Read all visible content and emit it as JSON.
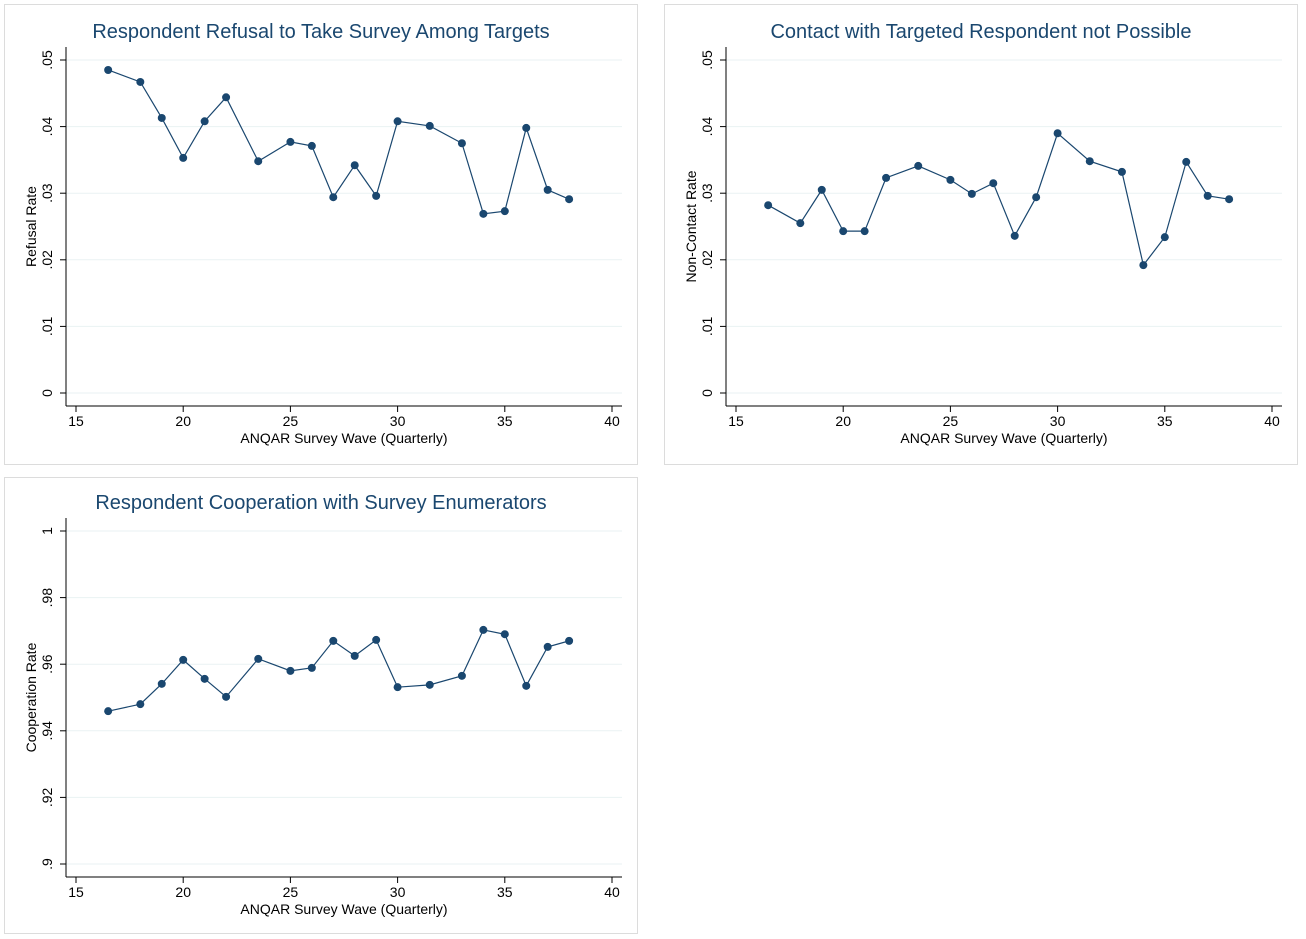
{
  "chart_data": [
    {
      "type": "line",
      "title": "Respondent Refusal to Take Survey Among Targets",
      "x_label": "ANQAR Survey Wave (Quarterly)",
      "y_label": "Refusal Rate",
      "x": [
        16.5,
        18,
        19,
        20,
        21,
        22,
        23.5,
        25,
        26,
        27,
        28,
        29,
        30,
        31.5,
        33,
        34,
        35,
        36,
        37,
        38
      ],
      "series": [
        {
          "name": "Refusal Rate",
          "color": "#1a476f",
          "values": [
            0.0485,
            0.0467,
            0.0413,
            0.0353,
            0.0408,
            0.0444,
            0.0348,
            0.0377,
            0.0371,
            0.0294,
            0.0342,
            0.0296,
            0.0408,
            0.0401,
            0.0375,
            0.0269,
            0.0273,
            0.0398,
            0.0305,
            0.0291
          ]
        }
      ],
      "xlim": [
        15,
        40
      ],
      "xticks": [
        15,
        20,
        25,
        30,
        35,
        40
      ],
      "ylim": [
        0,
        0.05
      ],
      "yticks": [
        0,
        {
          "value": 0.01,
          "label": ".01"
        },
        {
          "value": 0.02,
          "label": ".02"
        },
        {
          "value": 0.03,
          "label": ".03"
        },
        {
          "value": 0.04,
          "label": ".04"
        },
        {
          "value": 0.05,
          "label": ".05"
        }
      ],
      "grid": true
    },
    {
      "type": "line",
      "title": "Contact with Targeted Respondent not Possible",
      "x_label": "ANQAR Survey Wave (Quarterly)",
      "y_label": "Non-Contact Rate",
      "x": [
        16.5,
        18,
        19,
        20,
        21,
        22,
        23.5,
        25,
        26,
        27,
        28,
        29,
        30,
        31.5,
        33,
        34,
        35,
        36,
        37,
        38
      ],
      "series": [
        {
          "name": "Non-Contact Rate",
          "color": "#1a476f",
          "values": [
            0.0282,
            0.0255,
            0.0305,
            0.0243,
            0.0243,
            0.0323,
            0.0341,
            0.032,
            0.0299,
            0.0315,
            0.0236,
            0.0294,
            0.039,
            0.0348,
            0.0332,
            0.0192,
            0.0234,
            0.0347,
            0.0296,
            0.0291
          ]
        }
      ],
      "xlim": [
        15,
        40
      ],
      "xticks": [
        15,
        20,
        25,
        30,
        35,
        40
      ],
      "ylim": [
        0,
        0.05
      ],
      "yticks": [
        0,
        {
          "value": 0.01,
          "label": ".01"
        },
        {
          "value": 0.02,
          "label": ".02"
        },
        {
          "value": 0.03,
          "label": ".03"
        },
        {
          "value": 0.04,
          "label": ".04"
        },
        {
          "value": 0.05,
          "label": ".05"
        }
      ],
      "grid": true
    },
    {
      "type": "line",
      "title": "Respondent Cooperation with Survey Enumerators",
      "x_label": "ANQAR Survey Wave (Quarterly)",
      "y_label": "Cooperation Rate",
      "x": [
        16.5,
        18,
        19,
        20,
        21,
        22,
        23.5,
        25,
        26,
        27,
        28,
        29,
        30,
        31.5,
        33,
        34,
        35,
        36,
        37,
        38
      ],
      "series": [
        {
          "name": "Cooperation Rate",
          "color": "#1a476f",
          "values": [
            0.9459,
            0.948,
            0.9541,
            0.9613,
            0.9556,
            0.9502,
            0.9616,
            0.958,
            0.9589,
            0.967,
            0.9625,
            0.9673,
            0.9531,
            0.9538,
            0.9565,
            0.9703,
            0.969,
            0.9535,
            0.9652,
            0.967
          ]
        }
      ],
      "xlim": [
        15,
        40
      ],
      "xticks": [
        15,
        20,
        25,
        30,
        35,
        40
      ],
      "ylim": [
        0.9,
        1
      ],
      "yticks": [
        {
          "value": 0.9,
          "label": ".9"
        },
        {
          "value": 0.92,
          "label": ".92"
        },
        {
          "value": 0.94,
          "label": ".94"
        },
        {
          "value": 0.96,
          "label": ".96"
        },
        {
          "value": 0.98,
          "label": ".98"
        },
        1
      ],
      "grid": true
    }
  ]
}
